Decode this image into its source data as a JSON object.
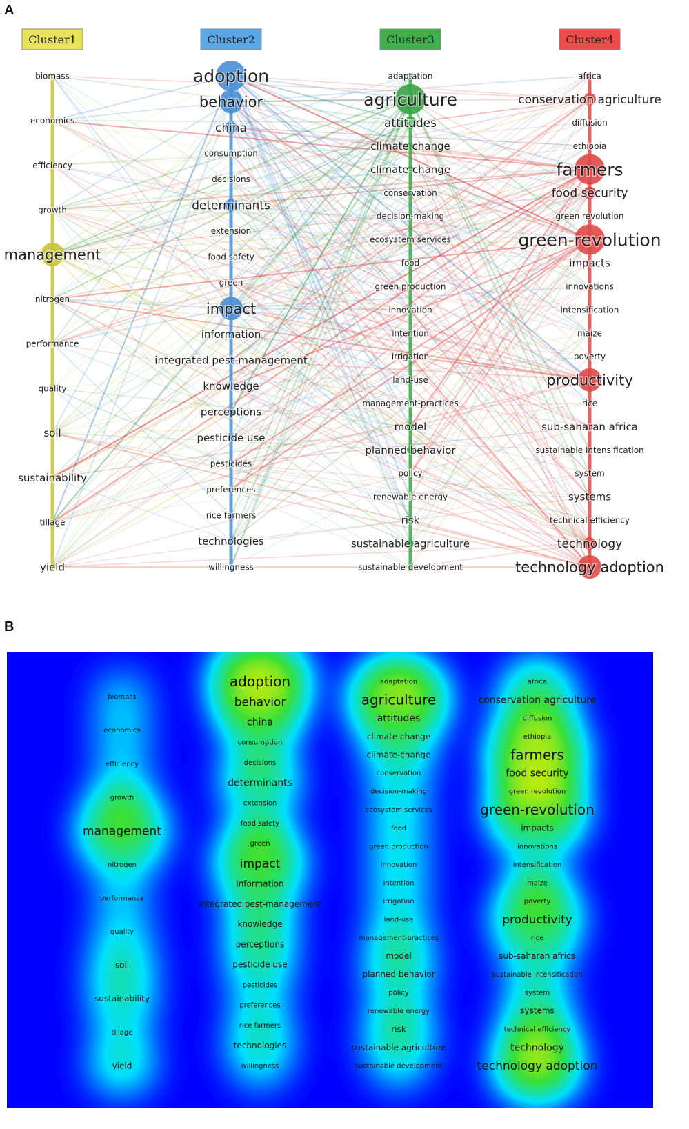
{
  "panel_a_label": "A",
  "panel_b_label": "B",
  "chart_data": [
    {
      "type": "network",
      "panel": "A",
      "clusters": [
        {
          "name": "Cluster1",
          "color": "#c9c435",
          "label_bg": "#e8e35a",
          "terms": [
            {
              "text": "biomass",
              "size": 1
            },
            {
              "text": "economics",
              "size": 1
            },
            {
              "text": "efficiency",
              "size": 1
            },
            {
              "text": "growth",
              "size": 1
            },
            {
              "text": "management",
              "size": 4
            },
            {
              "text": "nitrogen",
              "size": 1
            },
            {
              "text": "performance",
              "size": 1
            },
            {
              "text": "quality",
              "size": 1
            },
            {
              "text": "soil",
              "size": 2
            },
            {
              "text": "sustainability",
              "size": 2
            },
            {
              "text": "tillage",
              "size": 1
            },
            {
              "text": "yield",
              "size": 2
            }
          ]
        },
        {
          "name": "Cluster2",
          "color": "#4a8ed4",
          "label_bg": "#5aa7e8",
          "terms": [
            {
              "text": "adoption",
              "size": 5
            },
            {
              "text": "behavior",
              "size": 4
            },
            {
              "text": "china",
              "size": 3
            },
            {
              "text": "consumption",
              "size": 1
            },
            {
              "text": "decisions",
              "size": 1
            },
            {
              "text": "determinants",
              "size": 3
            },
            {
              "text": "extension",
              "size": 1
            },
            {
              "text": "food safety",
              "size": 1
            },
            {
              "text": "green",
              "size": 1
            },
            {
              "text": "impact",
              "size": 4
            },
            {
              "text": "information",
              "size": 2
            },
            {
              "text": "integrated pest-management",
              "size": 2
            },
            {
              "text": "knowledge",
              "size": 2
            },
            {
              "text": "perceptions",
              "size": 2
            },
            {
              "text": "pesticide use",
              "size": 2
            },
            {
              "text": "pesticides",
              "size": 1
            },
            {
              "text": "preferences",
              "size": 1
            },
            {
              "text": "rice farmers",
              "size": 1
            },
            {
              "text": "technologies",
              "size": 2
            },
            {
              "text": "willingness",
              "size": 1
            }
          ]
        },
        {
          "name": "Cluster3",
          "color": "#3aa446",
          "label_bg": "#3fb04a",
          "terms": [
            {
              "text": "adaptation",
              "size": 1
            },
            {
              "text": "agriculture",
              "size": 5
            },
            {
              "text": "attitudes",
              "size": 3
            },
            {
              "text": "climate change",
              "size": 2
            },
            {
              "text": "climate-change",
              "size": 2
            },
            {
              "text": "conservation",
              "size": 1
            },
            {
              "text": "decision-making",
              "size": 1
            },
            {
              "text": "ecosystem services",
              "size": 1
            },
            {
              "text": "food",
              "size": 1
            },
            {
              "text": "green production",
              "size": 1
            },
            {
              "text": "innovation",
              "size": 1
            },
            {
              "text": "intention",
              "size": 1
            },
            {
              "text": "irrigation",
              "size": 1
            },
            {
              "text": "land-use",
              "size": 1
            },
            {
              "text": "management-practices",
              "size": 1
            },
            {
              "text": "model",
              "size": 2
            },
            {
              "text": "planned behavior",
              "size": 2
            },
            {
              "text": "policy",
              "size": 1
            },
            {
              "text": "renewable energy",
              "size": 1
            },
            {
              "text": "risk",
              "size": 2
            },
            {
              "text": "sustainable agriculture",
              "size": 2
            },
            {
              "text": "sustainable development",
              "size": 1
            }
          ]
        },
        {
          "name": "Cluster4",
          "color": "#e04848",
          "label_bg": "#f04a4a",
          "terms": [
            {
              "text": "africa",
              "size": 1
            },
            {
              "text": "conservation agriculture",
              "size": 3
            },
            {
              "text": "diffusion",
              "size": 1
            },
            {
              "text": "ethiopia",
              "size": 1
            },
            {
              "text": "farmers",
              "size": 5
            },
            {
              "text": "food security",
              "size": 3
            },
            {
              "text": "green revolution",
              "size": 1
            },
            {
              "text": "green-revolution",
              "size": 5
            },
            {
              "text": "impacts",
              "size": 2
            },
            {
              "text": "innovations",
              "size": 1
            },
            {
              "text": "intensification",
              "size": 1
            },
            {
              "text": "maize",
              "size": 1
            },
            {
              "text": "poverty",
              "size": 1
            },
            {
              "text": "productivity",
              "size": 4
            },
            {
              "text": "rice",
              "size": 1
            },
            {
              "text": "sub-saharan africa",
              "size": 2
            },
            {
              "text": "sustainable intensification",
              "size": 1
            },
            {
              "text": "system",
              "size": 1
            },
            {
              "text": "systems",
              "size": 2
            },
            {
              "text": "technical efficiency",
              "size": 1
            },
            {
              "text": "technology",
              "size": 3
            },
            {
              "text": "technology adoption",
              "size": 4
            }
          ]
        }
      ]
    },
    {
      "type": "heatmap",
      "panel": "B",
      "colors": {
        "low": "#0000ff",
        "mid1": "#00e0ff",
        "mid2": "#38e038",
        "mid3": "#f0f000",
        "high": "#ff1000"
      }
    }
  ]
}
